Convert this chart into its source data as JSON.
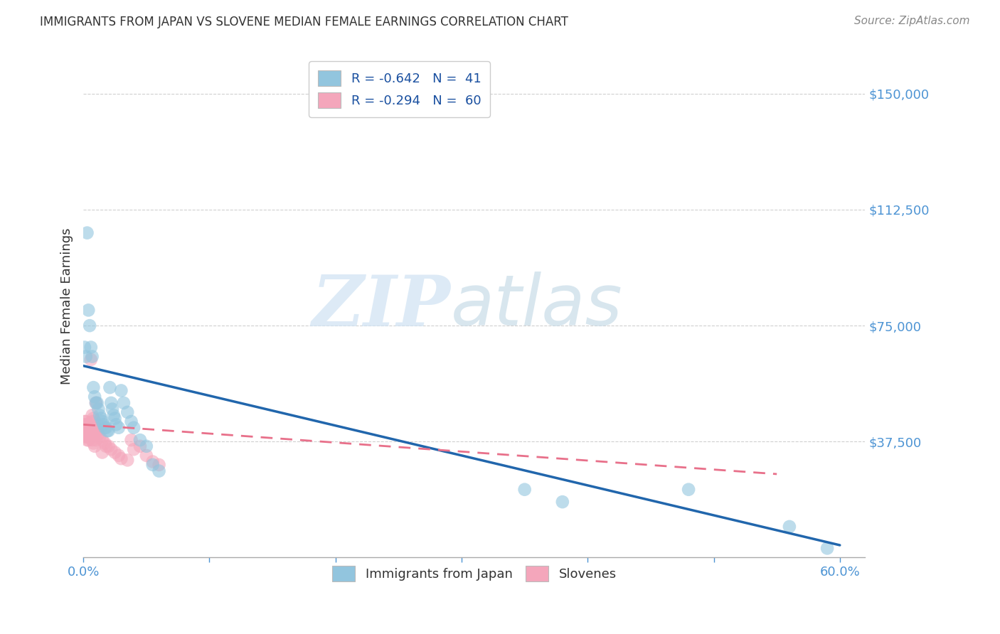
{
  "title": "IMMIGRANTS FROM JAPAN VS SLOVENE MEDIAN FEMALE EARNINGS CORRELATION CHART",
  "source": "Source: ZipAtlas.com",
  "ylabel": "Median Female Earnings",
  "ytick_labels": [
    "$37,500",
    "$75,000",
    "$112,500",
    "$150,000"
  ],
  "ytick_values": [
    37500,
    75000,
    112500,
    150000
  ],
  "ymin": 0,
  "ymax": 162500,
  "xmin": 0.0,
  "xmax": 0.62,
  "color_japan": "#92c5de",
  "color_slovene": "#f4a6bb",
  "color_line_japan": "#2166ac",
  "color_line_slovene": "#e8708a",
  "watermark_zip": "ZIP",
  "watermark_atlas": "atlas",
  "japan_scatter": [
    [
      0.001,
      68000
    ],
    [
      0.002,
      65000
    ],
    [
      0.003,
      105000
    ],
    [
      0.004,
      80000
    ],
    [
      0.005,
      75000
    ],
    [
      0.006,
      68000
    ],
    [
      0.007,
      65000
    ],
    [
      0.008,
      55000
    ],
    [
      0.009,
      52000
    ],
    [
      0.01,
      50000
    ],
    [
      0.011,
      50000
    ],
    [
      0.012,
      48000
    ],
    [
      0.013,
      46000
    ],
    [
      0.014,
      45000
    ],
    [
      0.015,
      44000
    ],
    [
      0.016,
      43000
    ],
    [
      0.017,
      42000
    ],
    [
      0.018,
      42000
    ],
    [
      0.019,
      41000
    ],
    [
      0.02,
      41000
    ],
    [
      0.021,
      55000
    ],
    [
      0.022,
      50000
    ],
    [
      0.023,
      48000
    ],
    [
      0.024,
      46000
    ],
    [
      0.025,
      45000
    ],
    [
      0.026,
      43000
    ],
    [
      0.028,
      42000
    ],
    [
      0.03,
      54000
    ],
    [
      0.032,
      50000
    ],
    [
      0.035,
      47000
    ],
    [
      0.038,
      44000
    ],
    [
      0.04,
      42000
    ],
    [
      0.045,
      38000
    ],
    [
      0.05,
      36000
    ],
    [
      0.055,
      30000
    ],
    [
      0.06,
      28000
    ],
    [
      0.35,
      22000
    ],
    [
      0.48,
      22000
    ],
    [
      0.56,
      10000
    ],
    [
      0.38,
      18000
    ],
    [
      0.59,
      3000
    ]
  ],
  "slovene_scatter": [
    [
      0.001,
      44000
    ],
    [
      0.001,
      43000
    ],
    [
      0.001,
      42000
    ],
    [
      0.001,
      41000
    ],
    [
      0.001,
      40500
    ],
    [
      0.001,
      40000
    ],
    [
      0.002,
      44000
    ],
    [
      0.002,
      43000
    ],
    [
      0.002,
      42000
    ],
    [
      0.002,
      41000
    ],
    [
      0.002,
      40000
    ],
    [
      0.002,
      39000
    ],
    [
      0.003,
      43000
    ],
    [
      0.003,
      42000
    ],
    [
      0.003,
      41000
    ],
    [
      0.003,
      40000
    ],
    [
      0.003,
      39000
    ],
    [
      0.003,
      38000
    ],
    [
      0.004,
      42000
    ],
    [
      0.004,
      41000
    ],
    [
      0.004,
      40000
    ],
    [
      0.004,
      39000
    ],
    [
      0.004,
      38000
    ],
    [
      0.005,
      41000
    ],
    [
      0.005,
      40000
    ],
    [
      0.005,
      39000
    ],
    [
      0.006,
      64000
    ],
    [
      0.006,
      40000
    ],
    [
      0.006,
      39000
    ],
    [
      0.007,
      46000
    ],
    [
      0.007,
      44000
    ],
    [
      0.007,
      38000
    ],
    [
      0.008,
      45000
    ],
    [
      0.008,
      41000
    ],
    [
      0.008,
      37000
    ],
    [
      0.009,
      44000
    ],
    [
      0.009,
      40000
    ],
    [
      0.009,
      36000
    ],
    [
      0.01,
      50000
    ],
    [
      0.01,
      42000
    ],
    [
      0.01,
      38000
    ],
    [
      0.011,
      41000
    ],
    [
      0.012,
      40000
    ],
    [
      0.013,
      39000
    ],
    [
      0.015,
      38000
    ],
    [
      0.015,
      34000
    ],
    [
      0.017,
      37000
    ],
    [
      0.018,
      36000
    ],
    [
      0.02,
      36000
    ],
    [
      0.022,
      35000
    ],
    [
      0.025,
      34000
    ],
    [
      0.028,
      33000
    ],
    [
      0.03,
      32000
    ],
    [
      0.035,
      31500
    ],
    [
      0.038,
      38000
    ],
    [
      0.04,
      35000
    ],
    [
      0.045,
      36000
    ],
    [
      0.05,
      33000
    ],
    [
      0.055,
      31000
    ],
    [
      0.06,
      30000
    ]
  ],
  "japan_line_x": [
    0.0,
    0.6
  ],
  "japan_line_y": [
    62000,
    4000
  ],
  "slovene_line_x": [
    0.0,
    0.55
  ],
  "slovene_line_y": [
    43000,
    27000
  ],
  "background_color": "#ffffff",
  "grid_color": "#d0d0d0",
  "title_color": "#333333",
  "axis_label_color": "#333333",
  "yaxis_label_color": "#4d94d4",
  "xtick_positions": [
    0.0,
    0.1,
    0.2,
    0.3,
    0.4,
    0.5,
    0.6
  ]
}
